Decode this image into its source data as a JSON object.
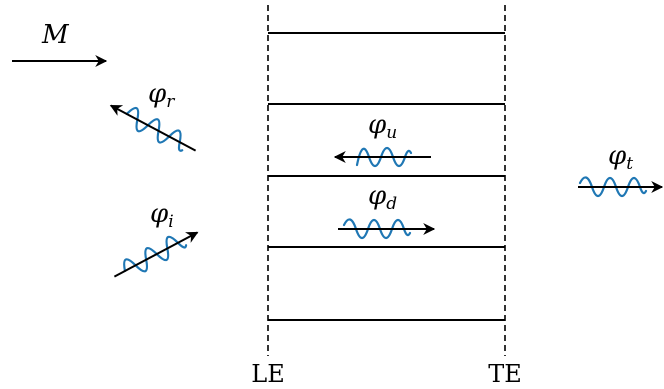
{
  "labels": {
    "mach": "M",
    "phi": "φ",
    "reflected_sub": "r",
    "incident_sub": "i",
    "upstream_sub": "u",
    "downstream_sub": "d",
    "transmitted_sub": "t",
    "leading_edge": "LE",
    "trailing_edge": "TE"
  },
  "colors": {
    "wave": "#1f77b4",
    "lines": "#000000"
  }
}
